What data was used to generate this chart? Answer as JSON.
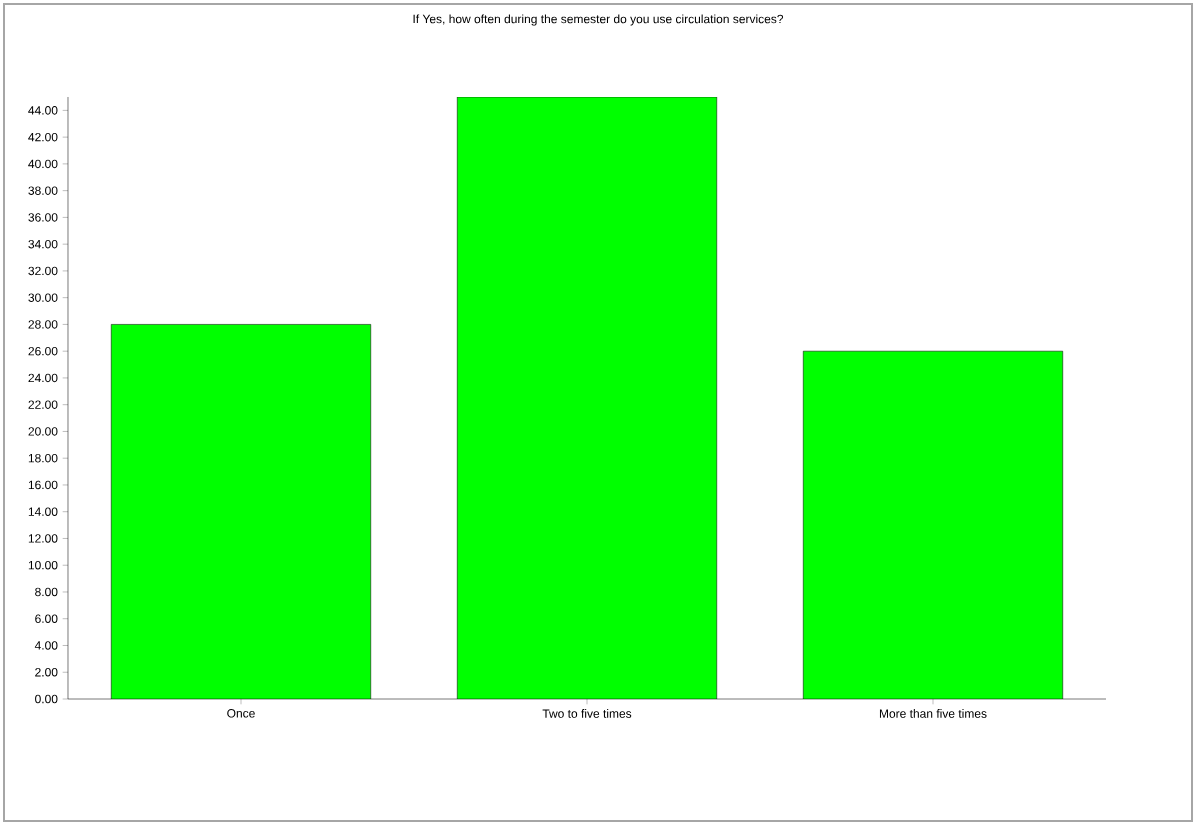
{
  "chart_data": {
    "type": "bar",
    "title": "If Yes, how often during the semester do you use circulation services?",
    "categories": [
      "Once",
      "Two to five times",
      "More than five times"
    ],
    "values": [
      28,
      45,
      26
    ],
    "color": "#00ff00",
    "ylim": [
      0,
      45
    ],
    "yticks": [
      {
        "value": 0,
        "label": "0.00"
      },
      {
        "value": 2,
        "label": "2.00"
      },
      {
        "value": 4,
        "label": "4.00"
      },
      {
        "value": 6,
        "label": "6.00"
      },
      {
        "value": 8,
        "label": "8.00"
      },
      {
        "value": 10,
        "label": "10.00"
      },
      {
        "value": 12,
        "label": "12.00"
      },
      {
        "value": 14,
        "label": "14.00"
      },
      {
        "value": 16,
        "label": "16.00"
      },
      {
        "value": 18,
        "label": "18.00"
      },
      {
        "value": 20,
        "label": "20.00"
      },
      {
        "value": 22,
        "label": "22.00"
      },
      {
        "value": 24,
        "label": "24.00"
      },
      {
        "value": 26,
        "label": "26.00"
      },
      {
        "value": 28,
        "label": "28.00"
      },
      {
        "value": 30,
        "label": "30.00"
      },
      {
        "value": 32,
        "label": "32.00"
      },
      {
        "value": 34,
        "label": "34.00"
      },
      {
        "value": 36,
        "label": "36.00"
      },
      {
        "value": 38,
        "label": "38.00"
      },
      {
        "value": 40,
        "label": "40.00"
      },
      {
        "value": 42,
        "label": "42.00"
      },
      {
        "value": 44,
        "label": "44.00"
      }
    ],
    "grid": false
  }
}
